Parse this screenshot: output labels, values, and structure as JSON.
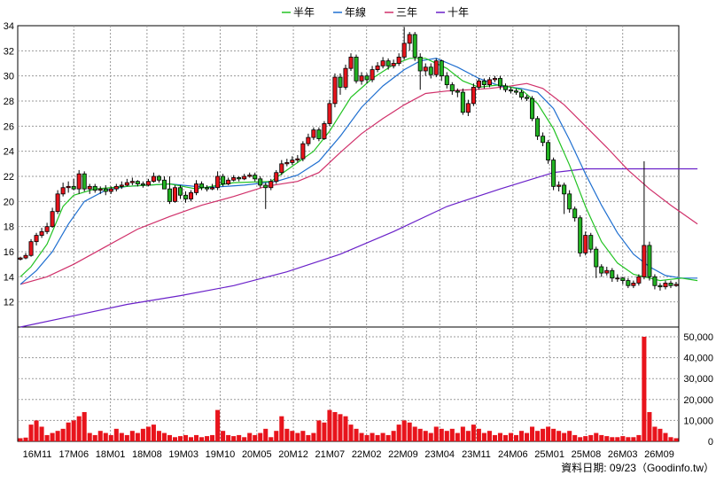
{
  "chart_data": {
    "type": "candlestick",
    "legend": [
      {
        "label": "半年",
        "color": "#22c322"
      },
      {
        "label": "年線",
        "color": "#1f6fd0"
      },
      {
        "label": "三年",
        "color": "#d0306a"
      },
      {
        "label": "十年",
        "color": "#6a21c9"
      }
    ],
    "price_axis": {
      "min": 10,
      "max": 34,
      "step": 2,
      "visible_from": 10
    },
    "volume_axis": {
      "min": 0,
      "max": 50000,
      "ticks": [
        "0",
        "10,000",
        "20,000",
        "30,000",
        "40,000",
        "50,000"
      ]
    },
    "x_labels": [
      "16M11",
      "17M06",
      "18M01",
      "18M08",
      "19M03",
      "19M10",
      "20M05",
      "20M12",
      "21M07",
      "22M02",
      "22M09",
      "23M04",
      "23M11",
      "24M06",
      "25M01",
      "25M08",
      "26M03",
      "26M09"
    ],
    "credit": "資料日期: 09/23（Goodinfo.tw）",
    "candles": [
      [
        15.4,
        15.5,
        15.6,
        15.3,
        1500
      ],
      [
        15.5,
        15.7,
        15.9,
        15.4,
        1800
      ],
      [
        15.7,
        16.8,
        17.0,
        15.6,
        8000
      ],
      [
        16.8,
        17.3,
        17.5,
        16.5,
        10000
      ],
      [
        17.3,
        17.6,
        17.9,
        17.1,
        7000
      ],
      [
        17.6,
        18.0,
        18.3,
        17.4,
        3000
      ],
      [
        18.0,
        19.2,
        19.5,
        17.9,
        4000
      ],
      [
        19.2,
        20.6,
        20.9,
        19.0,
        5000
      ],
      [
        20.6,
        21.1,
        21.5,
        20.4,
        6000
      ],
      [
        21.1,
        21.2,
        21.6,
        20.7,
        9000
      ],
      [
        21.2,
        21.0,
        21.8,
        20.9,
        10000
      ],
      [
        21.0,
        22.2,
        22.5,
        20.6,
        12000
      ],
      [
        22.2,
        21.0,
        22.4,
        20.8,
        14000
      ],
      [
        21.0,
        21.2,
        21.4,
        20.6,
        4000
      ],
      [
        21.2,
        20.9,
        21.4,
        20.7,
        3000
      ],
      [
        20.9,
        21.0,
        21.2,
        20.6,
        5000
      ],
      [
        21.0,
        20.8,
        21.3,
        20.5,
        4000
      ],
      [
        20.8,
        21.0,
        21.2,
        20.6,
        3000
      ],
      [
        21.0,
        21.2,
        21.4,
        20.8,
        6000
      ],
      [
        21.2,
        21.3,
        21.6,
        21.0,
        4000
      ],
      [
        21.3,
        21.5,
        21.8,
        21.2,
        3000
      ],
      [
        21.5,
        21.6,
        21.9,
        21.3,
        5000
      ],
      [
        21.6,
        21.4,
        21.7,
        21.2,
        4000
      ],
      [
        21.4,
        21.3,
        21.6,
        21.1,
        6000
      ],
      [
        21.3,
        21.6,
        21.8,
        21.2,
        7000
      ],
      [
        21.6,
        22.0,
        22.3,
        21.5,
        8000
      ],
      [
        22.0,
        21.7,
        22.1,
        21.5,
        5000
      ],
      [
        21.7,
        21.0,
        22.0,
        21.5,
        4000
      ],
      [
        21.0,
        20.0,
        22.0,
        19.8,
        3000
      ],
      [
        20.0,
        21.1,
        21.3,
        19.9,
        2000
      ],
      [
        21.1,
        20.5,
        21.3,
        20.2,
        2500
      ],
      [
        20.5,
        20.2,
        20.8,
        19.9,
        3000
      ],
      [
        20.2,
        20.7,
        20.9,
        20.0,
        2000
      ],
      [
        20.7,
        21.4,
        21.7,
        20.5,
        3000
      ],
      [
        21.4,
        21.1,
        21.6,
        20.9,
        2000
      ],
      [
        21.1,
        21.0,
        21.3,
        20.8,
        2500
      ],
      [
        21.0,
        21.1,
        21.4,
        20.9,
        3000
      ],
      [
        21.1,
        22.0,
        22.4,
        20.9,
        15000
      ],
      [
        22.0,
        21.4,
        22.2,
        21.2,
        5000
      ],
      [
        21.4,
        21.7,
        21.9,
        21.3,
        3000
      ],
      [
        21.7,
        21.9,
        22.1,
        21.6,
        2500
      ],
      [
        21.9,
        21.8,
        22.0,
        21.6,
        3000
      ],
      [
        21.8,
        22.0,
        22.2,
        21.7,
        2000
      ],
      [
        22.0,
        22.1,
        22.3,
        21.9,
        4000
      ],
      [
        22.1,
        21.8,
        22.3,
        21.6,
        3000
      ],
      [
        21.8,
        21.3,
        22.0,
        21.1,
        4000
      ],
      [
        21.3,
        21.1,
        21.5,
        19.4,
        6000
      ],
      [
        21.1,
        21.6,
        21.8,
        20.9,
        2000
      ],
      [
        21.6,
        22.3,
        22.5,
        21.4,
        5000
      ],
      [
        22.3,
        23.0,
        23.3,
        22.1,
        12000
      ],
      [
        23.0,
        23.1,
        23.4,
        22.8,
        6000
      ],
      [
        23.1,
        23.3,
        23.6,
        22.9,
        5000
      ],
      [
        23.3,
        23.4,
        23.7,
        23.1,
        4000
      ],
      [
        23.4,
        24.6,
        24.8,
        23.2,
        5000
      ],
      [
        24.6,
        25.1,
        25.4,
        24.4,
        3000
      ],
      [
        25.1,
        25.7,
        25.9,
        24.9,
        4000
      ],
      [
        25.7,
        25.0,
        25.9,
        24.8,
        10000
      ],
      [
        25.0,
        26.2,
        26.4,
        24.9,
        9000
      ],
      [
        26.2,
        27.8,
        28.1,
        26.0,
        15000
      ],
      [
        27.8,
        29.9,
        30.2,
        27.5,
        14000
      ],
      [
        29.9,
        29.1,
        30.2,
        28.5,
        13000
      ],
      [
        29.1,
        30.6,
        30.9,
        28.9,
        12000
      ],
      [
        30.6,
        31.5,
        31.8,
        30.4,
        8000
      ],
      [
        31.5,
        29.6,
        31.7,
        29.4,
        6000
      ],
      [
        29.6,
        30.0,
        30.3,
        29.3,
        4000
      ],
      [
        30.0,
        29.7,
        30.2,
        29.4,
        3000
      ],
      [
        29.7,
        30.5,
        30.8,
        29.5,
        4000
      ],
      [
        30.5,
        30.8,
        31.1,
        30.3,
        3000
      ],
      [
        30.8,
        31.2,
        31.5,
        30.6,
        4000
      ],
      [
        31.2,
        30.8,
        31.4,
        30.5,
        3000
      ],
      [
        30.8,
        31.0,
        31.3,
        30.6,
        5000
      ],
      [
        31.0,
        31.5,
        31.8,
        30.8,
        8000
      ],
      [
        31.5,
        32.6,
        33.9,
        31.3,
        10000
      ],
      [
        32.6,
        33.3,
        33.5,
        32.0,
        9000
      ],
      [
        33.3,
        31.5,
        33.5,
        31.2,
        7000
      ],
      [
        31.5,
        30.4,
        31.8,
        28.9,
        6000
      ],
      [
        30.4,
        30.7,
        31.0,
        30.0,
        5000
      ],
      [
        30.7,
        30.1,
        31.0,
        29.8,
        4000
      ],
      [
        30.1,
        31.2,
        31.4,
        29.9,
        7000
      ],
      [
        31.2,
        30.0,
        31.3,
        29.6,
        6000
      ],
      [
        30.0,
        29.3,
        30.3,
        29.0,
        5000
      ],
      [
        29.3,
        28.8,
        29.5,
        28.5,
        6000
      ],
      [
        28.8,
        28.7,
        29.0,
        28.3,
        4000
      ],
      [
        28.7,
        27.1,
        29.0,
        26.9,
        7000
      ],
      [
        27.1,
        27.8,
        28.1,
        26.8,
        5000
      ],
      [
        27.8,
        29.1,
        29.4,
        27.6,
        8000
      ],
      [
        29.1,
        29.6,
        29.8,
        28.9,
        6000
      ],
      [
        29.6,
        29.3,
        29.8,
        29.0,
        4000
      ],
      [
        29.3,
        29.7,
        29.9,
        29.1,
        5000
      ],
      [
        29.7,
        29.8,
        30.0,
        29.5,
        3000
      ],
      [
        29.8,
        29.2,
        30.0,
        28.9,
        4000
      ],
      [
        29.2,
        28.9,
        29.4,
        28.7,
        3000
      ],
      [
        28.9,
        28.8,
        29.1,
        28.6,
        4000
      ],
      [
        28.8,
        28.7,
        29.0,
        28.5,
        3000
      ],
      [
        28.7,
        28.3,
        28.9,
        28.1,
        5000
      ],
      [
        28.3,
        28.2,
        28.5,
        28.0,
        4000
      ],
      [
        28.2,
        26.6,
        28.4,
        26.4,
        7000
      ],
      [
        26.6,
        25.2,
        26.8,
        24.9,
        5000
      ],
      [
        25.2,
        24.7,
        25.5,
        24.4,
        6000
      ],
      [
        24.7,
        23.3,
        24.9,
        23.0,
        7000
      ],
      [
        23.3,
        21.2,
        23.5,
        20.9,
        6000
      ],
      [
        21.2,
        21.3,
        21.6,
        20.8,
        5000
      ],
      [
        21.3,
        20.6,
        21.5,
        19.0,
        4000
      ],
      [
        20.6,
        19.4,
        20.9,
        19.1,
        5000
      ],
      [
        19.4,
        18.7,
        19.6,
        18.4,
        3000
      ],
      [
        18.7,
        15.9,
        18.9,
        15.6,
        2000
      ],
      [
        15.9,
        17.3,
        17.6,
        15.7,
        2500
      ],
      [
        17.3,
        16.2,
        17.5,
        15.9,
        3000
      ],
      [
        16.2,
        14.8,
        16.4,
        13.9,
        4000
      ],
      [
        14.8,
        14.3,
        15.0,
        14.0,
        3000
      ],
      [
        14.3,
        14.5,
        14.8,
        14.1,
        2500
      ],
      [
        14.5,
        13.9,
        14.7,
        13.6,
        2000
      ],
      [
        13.9,
        13.9,
        14.2,
        13.6,
        2000
      ],
      [
        13.9,
        13.7,
        14.0,
        13.4,
        2500
      ],
      [
        13.7,
        13.3,
        13.9,
        13.1,
        2000
      ],
      [
        13.3,
        13.5,
        13.7,
        13.1,
        2000
      ],
      [
        13.5,
        14.0,
        14.2,
        13.3,
        3000
      ],
      [
        14.0,
        16.5,
        23.2,
        13.8,
        50000
      ],
      [
        16.5,
        14.0,
        16.8,
        13.7,
        14000
      ],
      [
        14.0,
        13.3,
        14.2,
        13.0,
        7000
      ],
      [
        13.3,
        13.2,
        13.5,
        12.9,
        6000
      ],
      [
        13.2,
        13.5,
        13.7,
        13.0,
        4000
      ],
      [
        13.5,
        13.3,
        13.7,
        13.1,
        2000
      ],
      [
        13.3,
        13.4,
        13.6,
        13.2,
        1500
      ]
    ],
    "ma_half": [
      [
        0,
        14.0
      ],
      [
        2,
        14.8
      ],
      [
        5,
        16.6
      ],
      [
        8,
        19.6
      ],
      [
        10,
        20.5
      ],
      [
        14,
        21.0
      ],
      [
        20,
        21.2
      ],
      [
        28,
        21.4
      ],
      [
        33,
        21.0
      ],
      [
        40,
        21.5
      ],
      [
        47,
        21.6
      ],
      [
        50,
        22.5
      ],
      [
        55,
        24.0
      ],
      [
        58,
        25.6
      ],
      [
        62,
        28.3
      ],
      [
        66,
        29.8
      ],
      [
        70,
        30.9
      ],
      [
        73,
        31.4
      ],
      [
        76,
        31.4
      ],
      [
        80,
        30.6
      ],
      [
        83,
        29.6
      ],
      [
        86,
        29.1
      ],
      [
        90,
        29.3
      ],
      [
        94,
        28.9
      ],
      [
        97,
        27.8
      ],
      [
        100,
        25.8
      ],
      [
        103,
        22.9
      ],
      [
        106,
        19.6
      ],
      [
        109,
        16.8
      ],
      [
        112,
        15.1
      ],
      [
        115,
        14.2
      ],
      [
        118,
        13.9
      ],
      [
        120,
        13.7
      ],
      [
        122,
        13.8
      ],
      [
        124,
        13.9
      ],
      [
        127,
        13.7
      ]
    ],
    "ma_year": [
      [
        0,
        13.4
      ],
      [
        3,
        14.5
      ],
      [
        6,
        16.0
      ],
      [
        9,
        18.2
      ],
      [
        12,
        20.0
      ],
      [
        16,
        20.9
      ],
      [
        20,
        21.2
      ],
      [
        28,
        21.4
      ],
      [
        35,
        21.1
      ],
      [
        42,
        21.3
      ],
      [
        48,
        21.6
      ],
      [
        52,
        22.1
      ],
      [
        56,
        23.2
      ],
      [
        60,
        25.2
      ],
      [
        64,
        27.5
      ],
      [
        68,
        29.2
      ],
      [
        72,
        30.5
      ],
      [
        75,
        31.2
      ],
      [
        78,
        31.4
      ],
      [
        82,
        30.7
      ],
      [
        86,
        29.8
      ],
      [
        90,
        29.2
      ],
      [
        94,
        29.0
      ],
      [
        97,
        28.7
      ],
      [
        100,
        27.4
      ],
      [
        103,
        24.9
      ],
      [
        106,
        22.2
      ],
      [
        109,
        19.7
      ],
      [
        112,
        17.5
      ],
      [
        115,
        15.8
      ],
      [
        118,
        14.8
      ],
      [
        121,
        14.1
      ],
      [
        124,
        13.9
      ],
      [
        127,
        13.9
      ]
    ],
    "ma_3y": [
      [
        0,
        13.4
      ],
      [
        5,
        14.0
      ],
      [
        10,
        15.0
      ],
      [
        16,
        16.4
      ],
      [
        22,
        17.8
      ],
      [
        28,
        18.8
      ],
      [
        34,
        19.7
      ],
      [
        40,
        20.4
      ],
      [
        46,
        21.2
      ],
      [
        52,
        21.6
      ],
      [
        56,
        22.3
      ],
      [
        60,
        23.9
      ],
      [
        64,
        25.4
      ],
      [
        68,
        26.6
      ],
      [
        72,
        27.7
      ],
      [
        76,
        28.6
      ],
      [
        80,
        28.8
      ],
      [
        84,
        28.9
      ],
      [
        88,
        29.0
      ],
      [
        92,
        29.2
      ],
      [
        95,
        29.4
      ],
      [
        98,
        29.0
      ],
      [
        102,
        27.7
      ],
      [
        106,
        26.0
      ],
      [
        110,
        24.3
      ],
      [
        114,
        22.5
      ],
      [
        118,
        21.0
      ],
      [
        122,
        19.7
      ],
      [
        125,
        18.8
      ],
      [
        127,
        18.2
      ]
    ],
    "ma_10y": [
      [
        0,
        10.0
      ],
      [
        10,
        10.9
      ],
      [
        20,
        11.8
      ],
      [
        30,
        12.5
      ],
      [
        40,
        13.3
      ],
      [
        50,
        14.4
      ],
      [
        60,
        15.8
      ],
      [
        70,
        17.6
      ],
      [
        80,
        19.6
      ],
      [
        90,
        21.0
      ],
      [
        100,
        22.3
      ],
      [
        106,
        22.6
      ],
      [
        116,
        22.6
      ],
      [
        127,
        22.6
      ]
    ]
  }
}
